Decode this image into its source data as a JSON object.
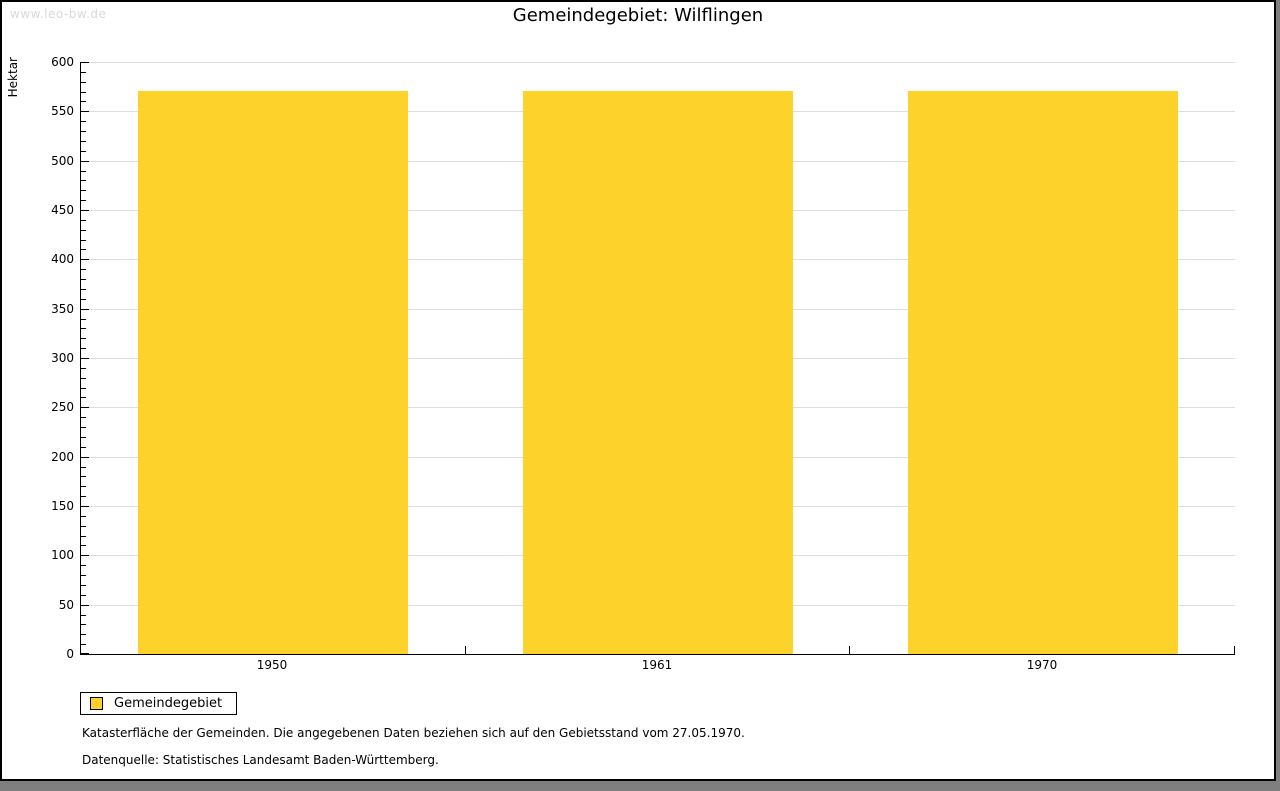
{
  "watermark": "www.leo-bw.de",
  "title": "Gemeindegebiet: Wilflingen",
  "y_axis_title": "Hektar",
  "legend": {
    "label": "Gemeindegebiet"
  },
  "footnotes": [
    "Katasterfläche der Gemeinden. Die angegebenen Daten beziehen sich auf den Gebietsstand vom 27.05.1970.",
    "Datenquelle: Statistisches Landesamt Baden-Württemberg."
  ],
  "colors": {
    "bar_fill": "#fdd32b",
    "grid": "#dddddd",
    "axis": "#000000",
    "watermark": "#d9d9d9",
    "page_background": "#ffffff",
    "outer_background": "#7f7f7f"
  },
  "chart_data": {
    "type": "bar",
    "categories": [
      "1950",
      "1961",
      "1970"
    ],
    "series": [
      {
        "name": "Gemeindegebiet",
        "values": [
          571,
          571,
          571
        ]
      }
    ],
    "title": "Gemeindegebiet: Wilflingen",
    "xlabel": "",
    "ylabel": "Hektar",
    "ylim": [
      0,
      600
    ],
    "y_major_step": 50,
    "y_minor_step": 10,
    "grid": true,
    "legend_position": "bottom-left",
    "bar_color": "#fdd32b"
  }
}
